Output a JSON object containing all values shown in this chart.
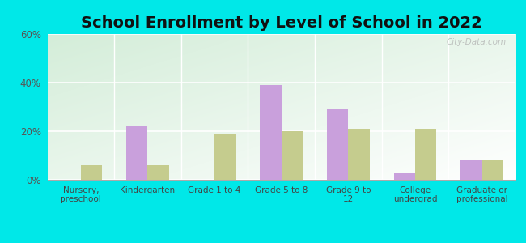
{
  "title": "School Enrollment by Level of School in 2022",
  "categories": [
    "Nursery,\npreschool",
    "Kindergarten",
    "Grade 1 to 4",
    "Grade 5 to 8",
    "Grade 9 to\n12",
    "College\nundergrad",
    "Graduate or\nprofessional"
  ],
  "zip_values": [
    0,
    22,
    0,
    39,
    29,
    3,
    8
  ],
  "va_values": [
    6,
    6,
    19,
    20,
    21,
    21,
    8
  ],
  "zip_color": "#c9a0dc",
  "va_color": "#c5cc8e",
  "background_outer": "#00e8e8",
  "ylim": [
    0,
    60
  ],
  "yticks": [
    0,
    20,
    40,
    60
  ],
  "ytick_labels": [
    "0%",
    "20%",
    "40%",
    "60%"
  ],
  "title_fontsize": 14,
  "watermark": "City-Data.com",
  "bar_width": 0.32
}
